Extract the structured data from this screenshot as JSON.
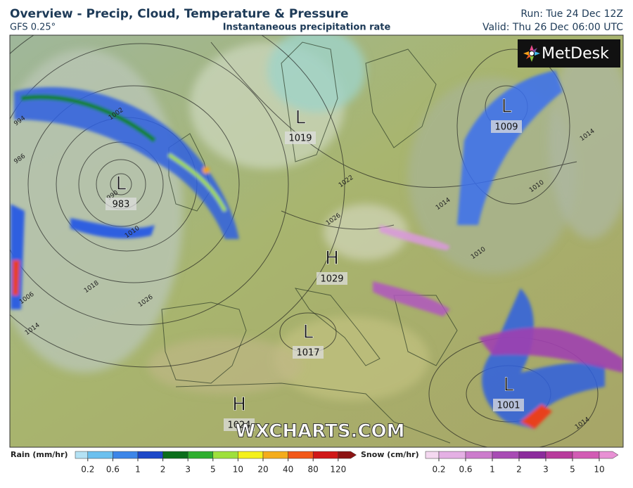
{
  "header": {
    "title": "Overview - Precip, Cloud, Temperature & Pressure",
    "model": "GFS 0.25°",
    "subtitle": "Instantaneous precipitation rate",
    "run": "Run: Tue 24 Dec 12Z",
    "valid": "Valid: Thu 26 Dec 06:00 UTC"
  },
  "map": {
    "logo": "MetDesk",
    "watermark": "WXCHARTS.COM",
    "pressure_centers": [
      {
        "type": "L",
        "value": 983
      },
      {
        "type": "L",
        "value": 1019
      },
      {
        "type": "L",
        "value": 1009
      },
      {
        "type": "H",
        "value": 1029
      },
      {
        "type": "L",
        "value": 1017
      },
      {
        "type": "L",
        "value": 1001
      },
      {
        "type": "H",
        "value": 1024
      }
    ],
    "isobar_labels": [
      1002,
      994,
      986,
      990,
      1010,
      1018,
      1026,
      1014,
      1006,
      1022,
      1026,
      1014,
      1010,
      1014,
      1010,
      1014
    ]
  },
  "legend": {
    "rain": {
      "label": "Rain (mm/hr)",
      "ticks": [
        0.2,
        0.6,
        1,
        2,
        3,
        5,
        10,
        20,
        40,
        80,
        120
      ],
      "colors": [
        "#b4e2f4",
        "#6cc0ee",
        "#3d86e8",
        "#1d48c8",
        "#0c6e1c",
        "#2fae2f",
        "#9ee03c",
        "#f4f01c",
        "#f4ac1c",
        "#f25818",
        "#d01818",
        "#8c1414"
      ]
    },
    "snow": {
      "label": "Snow (cm/hr)",
      "ticks": [
        0.2,
        0.6,
        1,
        2,
        3,
        5,
        10
      ],
      "colors": [
        "#f4d8f0",
        "#e4b0e4",
        "#cc7ccc",
        "#a84cb4",
        "#8c2c9c",
        "#b83c9c",
        "#d25cb4",
        "#e890d4"
      ]
    }
  }
}
